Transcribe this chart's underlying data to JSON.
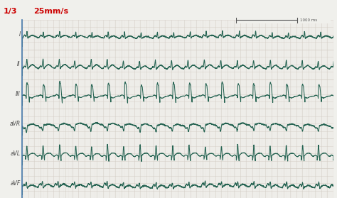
{
  "bg_color": "#f0f0ec",
  "grid_color": "#d0c8c0",
  "line_color": "#1a5c4a",
  "label_color": "#444444",
  "title_text": "25mm/s",
  "page_text": "1/3",
  "title_color": "#cc0000",
  "page_color": "#cc0000",
  "separator_color": "#4477aa",
  "leads": [
    "I",
    "II",
    "III",
    "aVR",
    "aVL",
    "aVF"
  ],
  "n_points": 2500,
  "sample_rate": 250,
  "heart_rate": 115,
  "fig_width": 4.74,
  "fig_height": 2.79,
  "dpi": 100
}
